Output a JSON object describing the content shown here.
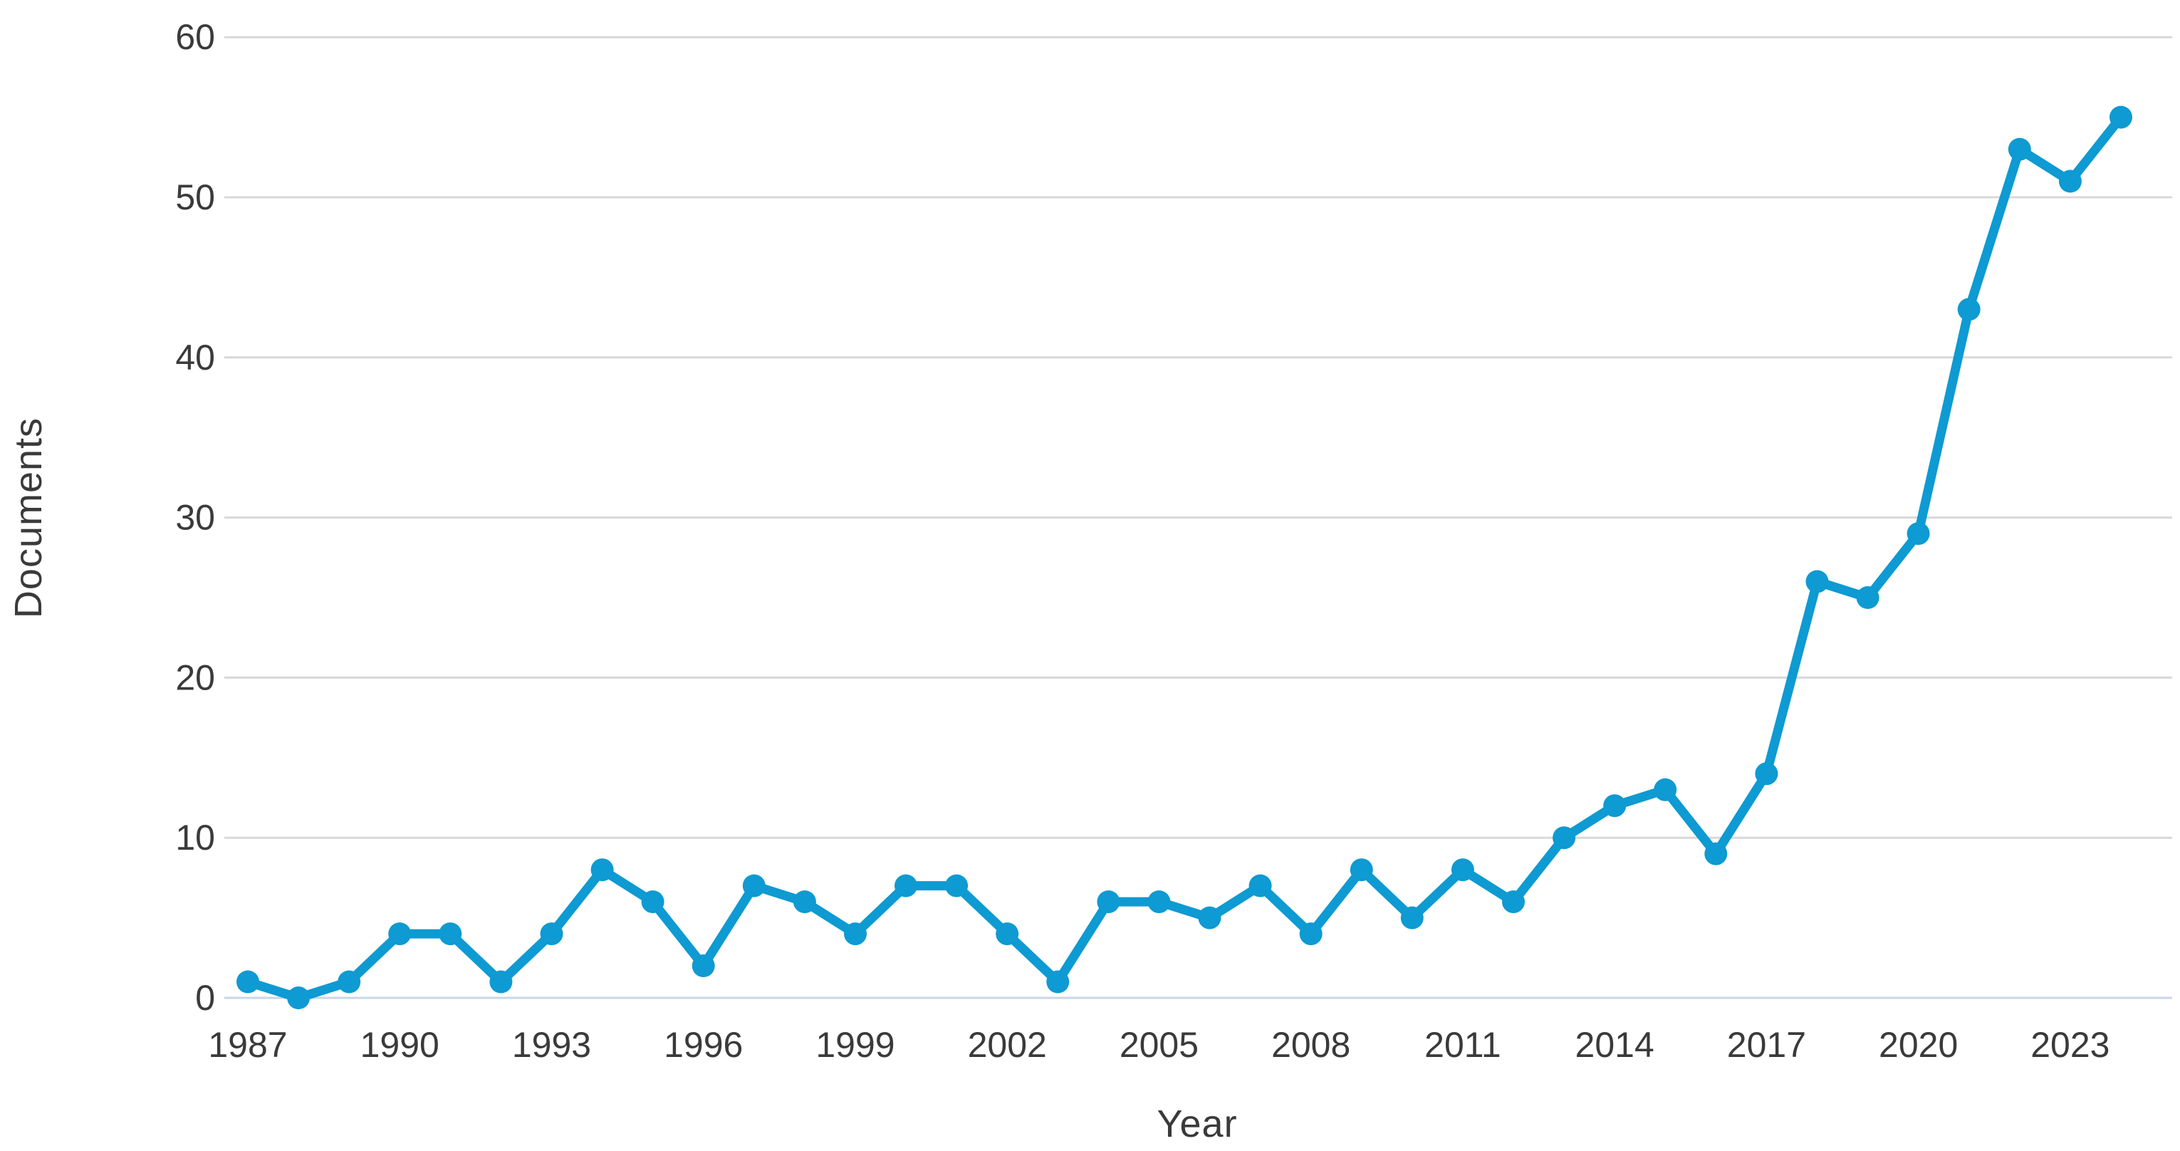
{
  "chart_data": {
    "type": "line",
    "title": "",
    "xlabel": "Year",
    "ylabel": "Documents",
    "x": [
      1987,
      1988,
      1989,
      1990,
      1991,
      1992,
      1993,
      1994,
      1995,
      1996,
      1997,
      1998,
      1999,
      2000,
      2001,
      2002,
      2003,
      2004,
      2005,
      2006,
      2007,
      2008,
      2009,
      2010,
      2011,
      2012,
      2013,
      2014,
      2015,
      2016,
      2017,
      2018,
      2019,
      2020,
      2021,
      2022,
      2023,
      2024
    ],
    "series": [
      {
        "name": "Documents",
        "values": [
          1,
          0,
          1,
          4,
          4,
          1,
          4,
          8,
          6,
          2,
          7,
          6,
          4,
          7,
          7,
          4,
          1,
          6,
          6,
          5,
          7,
          4,
          8,
          5,
          8,
          6,
          10,
          12,
          13,
          9,
          14,
          26,
          25,
          29,
          43,
          53,
          51,
          55
        ]
      }
    ],
    "ylim": [
      0,
      60
    ],
    "yticks": [
      0,
      10,
      20,
      30,
      40,
      50,
      60
    ],
    "xticks": [
      1987,
      1990,
      1993,
      1996,
      1999,
      2002,
      2005,
      2008,
      2011,
      2014,
      2017,
      2020,
      2023
    ],
    "grid": "horizontal",
    "legend": "none",
    "colors": {
      "line": "#0e9ad2",
      "marker": "#0e9ad2",
      "gridline": "#d8d8d8",
      "zero_line": "#c9d7e8",
      "text": "#3a3a3a"
    }
  }
}
